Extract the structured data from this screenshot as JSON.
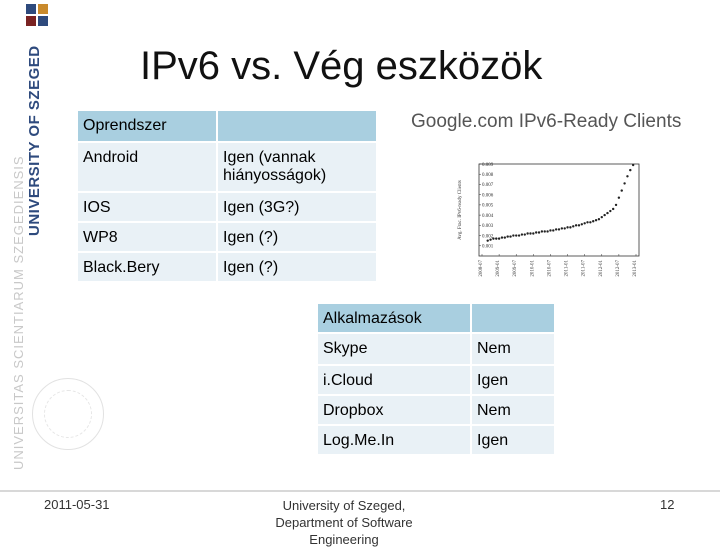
{
  "slide": {
    "title": "IPv6 vs. Vég eszközök"
  },
  "branding": {
    "university": "UNIVERSITY OF SZEGED",
    "latin_text": "UNIVERSITAS SCIENTIARUM SZEGEDIENSIS",
    "accent_color": "#2e4a7d"
  },
  "os_table": {
    "header": [
      "Oprendszer",
      ""
    ],
    "rows": [
      [
        "Android",
        "Igen (vannak hiányosságok)"
      ],
      [
        "IOS",
        "Igen (3G?)"
      ],
      [
        "WP8",
        "Igen (?)"
      ],
      [
        "Black.Bery",
        "Igen (?)"
      ]
    ],
    "header_color": "#a9cfe0",
    "row_color": "#e9f1f6"
  },
  "apps_table": {
    "header": [
      "Alkalmazások",
      ""
    ],
    "rows": [
      [
        "Skype",
        "Nem"
      ],
      [
        "i.Cloud",
        "Igen"
      ],
      [
        "Dropbox",
        "Nem"
      ],
      [
        "Log.Me.In",
        "Igen"
      ]
    ]
  },
  "chart_heading": "Google.com IPv6-Ready Clients",
  "chart_data": {
    "type": "scatter",
    "title": "",
    "ylabel": "Avg. Frac. IPv6-ready Clients",
    "xlabel": "",
    "ylim": [
      0,
      0.009
    ],
    "yticks": [
      "0.009",
      "0.008",
      "0.007",
      "0.006",
      "0.005",
      "0.004",
      "0.003",
      "0.002",
      "0.001"
    ],
    "xticks": [
      "2008-07",
      "2009-01",
      "2009-07",
      "2010-01",
      "2010-07",
      "2011-01",
      "2011-07",
      "2012-01",
      "2012-07",
      "2013-01"
    ],
    "x": [
      "2008-09",
      "2008-10",
      "2008-11",
      "2008-12",
      "2009-01",
      "2009-02",
      "2009-03",
      "2009-04",
      "2009-05",
      "2009-06",
      "2009-07",
      "2009-08",
      "2009-09",
      "2009-10",
      "2009-11",
      "2009-12",
      "2010-01",
      "2010-02",
      "2010-03",
      "2010-04",
      "2010-05",
      "2010-06",
      "2010-07",
      "2010-08",
      "2010-09",
      "2010-10",
      "2010-11",
      "2010-12",
      "2011-01",
      "2011-02",
      "2011-03",
      "2011-04",
      "2011-05",
      "2011-06",
      "2011-07",
      "2011-08",
      "2011-09",
      "2011-10",
      "2011-11",
      "2011-12",
      "2012-01",
      "2012-02",
      "2012-03",
      "2012-04",
      "2012-05",
      "2012-06",
      "2012-07",
      "2012-08",
      "2012-09",
      "2012-10",
      "2012-11",
      "2012-12"
    ],
    "y": [
      0.0015,
      0.0016,
      0.0017,
      0.0017,
      0.0017,
      0.0018,
      0.0018,
      0.0019,
      0.0019,
      0.002,
      0.002,
      0.002,
      0.0021,
      0.0021,
      0.0022,
      0.0022,
      0.0022,
      0.0023,
      0.0023,
      0.0024,
      0.0024,
      0.0024,
      0.0025,
      0.0025,
      0.0026,
      0.0026,
      0.0027,
      0.0027,
      0.0028,
      0.0028,
      0.0029,
      0.003,
      0.003,
      0.0031,
      0.0032,
      0.0033,
      0.0033,
      0.0034,
      0.0035,
      0.0036,
      0.0038,
      0.004,
      0.0042,
      0.0044,
      0.0046,
      0.005,
      0.0057,
      0.0064,
      0.0071,
      0.0078,
      0.0084,
      0.0089
    ],
    "grid": false
  },
  "footer": {
    "date": "2011-05-31",
    "center": "University of Szeged, Department of Software Engineering",
    "page": "12"
  }
}
